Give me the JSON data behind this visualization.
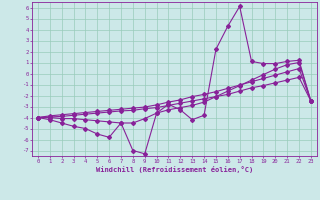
{
  "xlabel": "Windchill (Refroidissement éolien,°C)",
  "background_color": "#cce8e8",
  "grid_color": "#99ccbb",
  "line_color": "#882299",
  "xlim": [
    -0.5,
    23.5
  ],
  "ylim": [
    -7.5,
    6.5
  ],
  "xticks": [
    0,
    1,
    2,
    3,
    4,
    5,
    6,
    7,
    8,
    9,
    10,
    11,
    12,
    13,
    14,
    15,
    16,
    17,
    18,
    19,
    20,
    21,
    22,
    23
  ],
  "yticks": [
    -7,
    -6,
    -5,
    -4,
    -3,
    -2,
    -1,
    0,
    1,
    2,
    3,
    4,
    5,
    6
  ],
  "s1_x": [
    0,
    1,
    2,
    3,
    4,
    5,
    6,
    7,
    8,
    9,
    10,
    11,
    12,
    13,
    14,
    15,
    16,
    17,
    18,
    19,
    20,
    21,
    22,
    23
  ],
  "s1_y": [
    -4.0,
    -4.2,
    -4.5,
    -4.8,
    -5.0,
    -5.5,
    -5.8,
    -4.5,
    -7.0,
    -7.3,
    -3.6,
    -2.8,
    -3.3,
    -4.2,
    -3.8,
    2.2,
    4.3,
    6.1,
    1.1,
    0.9,
    0.9,
    1.1,
    1.2,
    -2.5
  ],
  "s2_x": [
    0,
    1,
    2,
    3,
    4,
    5,
    6,
    7,
    8,
    9,
    10,
    11,
    12,
    13,
    14,
    15,
    16,
    17,
    18,
    19,
    20,
    21,
    22,
    23
  ],
  "s2_y": [
    -4.0,
    -4.0,
    -4.1,
    -4.1,
    -4.2,
    -4.3,
    -4.4,
    -4.5,
    -4.5,
    -4.1,
    -3.6,
    -3.3,
    -3.1,
    -2.9,
    -2.6,
    -2.1,
    -1.6,
    -1.1,
    -0.6,
    -0.1,
    0.4,
    0.8,
    1.0,
    -2.5
  ],
  "s3_x": [
    0,
    1,
    2,
    3,
    4,
    5,
    6,
    7,
    8,
    9,
    10,
    11,
    12,
    13,
    14,
    15,
    16,
    17,
    18,
    19,
    20,
    21,
    22,
    23
  ],
  "s3_y": [
    -4.0,
    -3.95,
    -3.9,
    -3.8,
    -3.7,
    -3.6,
    -3.5,
    -3.4,
    -3.35,
    -3.2,
    -3.1,
    -2.9,
    -2.7,
    -2.5,
    -2.3,
    -2.1,
    -1.9,
    -1.6,
    -1.3,
    -1.1,
    -0.85,
    -0.6,
    -0.35,
    -2.5
  ],
  "s4_x": [
    0,
    1,
    2,
    3,
    4,
    5,
    6,
    7,
    8,
    9,
    10,
    11,
    12,
    13,
    14,
    15,
    16,
    17,
    18,
    19,
    20,
    21,
    22,
    23
  ],
  "s4_y": [
    -4.0,
    -3.85,
    -3.75,
    -3.65,
    -3.55,
    -3.45,
    -3.35,
    -3.25,
    -3.15,
    -3.05,
    -2.85,
    -2.6,
    -2.4,
    -2.1,
    -1.9,
    -1.65,
    -1.35,
    -1.05,
    -0.75,
    -0.45,
    -0.15,
    0.15,
    0.45,
    -2.5
  ]
}
